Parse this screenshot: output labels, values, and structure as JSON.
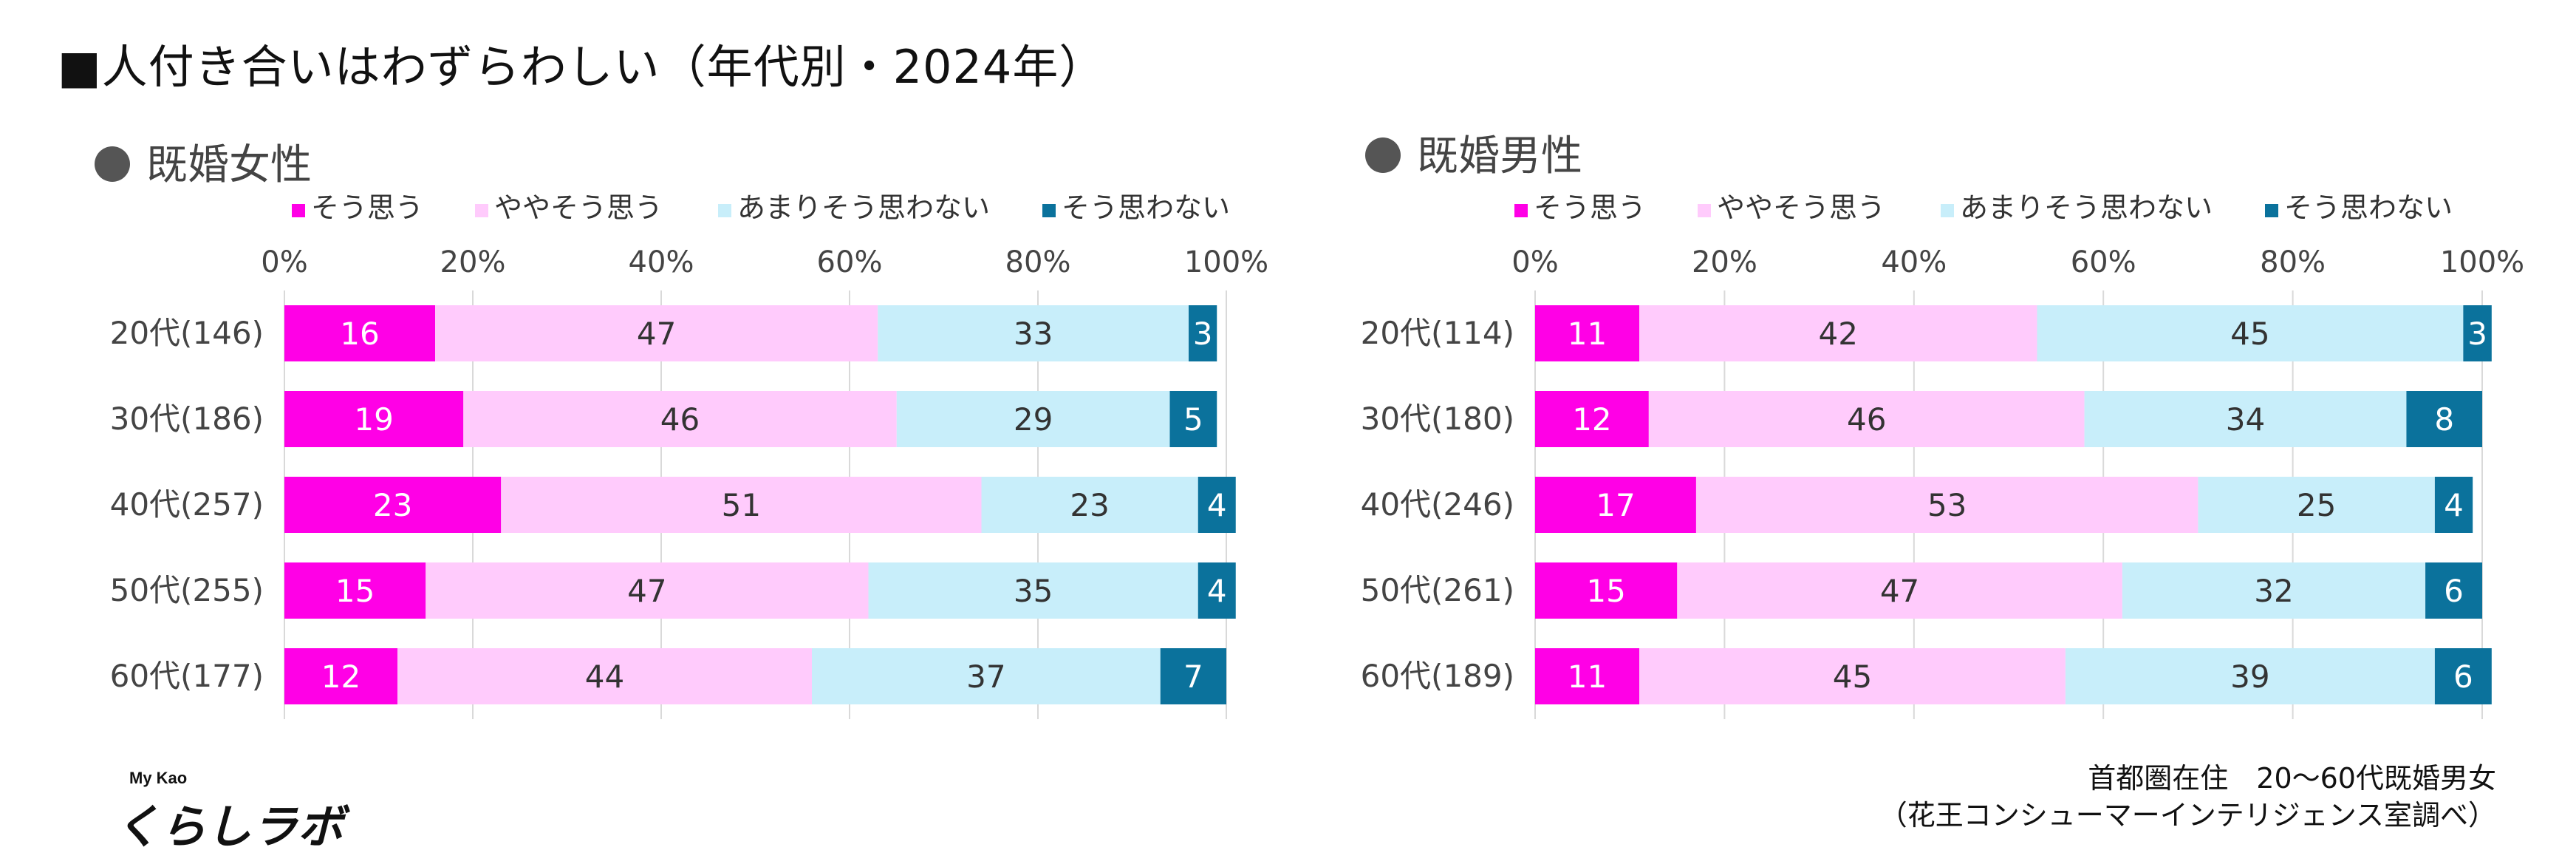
{
  "title": "■人付き合いはわずらわしい（年代別・2024年）",
  "colors": {
    "strongly_agree": "#ff00e6",
    "somewhat_agree": "#ffcbfc",
    "somewhat_disagree": "#c8eefa",
    "strongly_disagree": "#0b729c",
    "grid": "#d9d9d9",
    "panel_dot": "#555555"
  },
  "footnote": {
    "line1": "首都圏在住　20～60代既婚男女",
    "line2": "（花王コンシューマーインテリジェンス室調べ）"
  },
  "logo": {
    "top_text": "My Kao",
    "main_text": "くらしラボ"
  },
  "chart_data": [
    {
      "type": "bar",
      "orientation": "horizontal",
      "stacked": "percent",
      "title": "既婚女性",
      "x_ticks": [
        "0%",
        "20%",
        "40%",
        "60%",
        "80%",
        "100%"
      ],
      "xlim": [
        0,
        100
      ],
      "legend_position": "top",
      "categories": [
        "20代(146)",
        "30代(186)",
        "40代(257)",
        "50代(255)",
        "60代(177)"
      ],
      "series": [
        {
          "name": "そう思う",
          "values": [
            16,
            19,
            23,
            15,
            12
          ]
        },
        {
          "name": "ややそう思う",
          "values": [
            47,
            46,
            51,
            47,
            44
          ]
        },
        {
          "name": "あまりそう思わない",
          "values": [
            33,
            29,
            23,
            35,
            37
          ]
        },
        {
          "name": "そう思わない",
          "values": [
            3,
            5,
            4,
            4,
            7
          ]
        }
      ]
    },
    {
      "type": "bar",
      "orientation": "horizontal",
      "stacked": "percent",
      "title": "既婚男性",
      "x_ticks": [
        "0%",
        "20%",
        "40%",
        "60%",
        "80%",
        "100%"
      ],
      "xlim": [
        0,
        100
      ],
      "legend_position": "top",
      "categories": [
        "20代(114)",
        "30代(180)",
        "40代(246)",
        "50代(261)",
        "60代(189)"
      ],
      "series": [
        {
          "name": "そう思う",
          "values": [
            11,
            12,
            17,
            15,
            11
          ]
        },
        {
          "name": "ややそう思う",
          "values": [
            42,
            46,
            53,
            47,
            45
          ]
        },
        {
          "name": "あまりそう思わない",
          "values": [
            45,
            34,
            25,
            32,
            39
          ]
        },
        {
          "name": "そう思わない",
          "values": [
            3,
            8,
            4,
            6,
            6
          ]
        }
      ]
    }
  ]
}
